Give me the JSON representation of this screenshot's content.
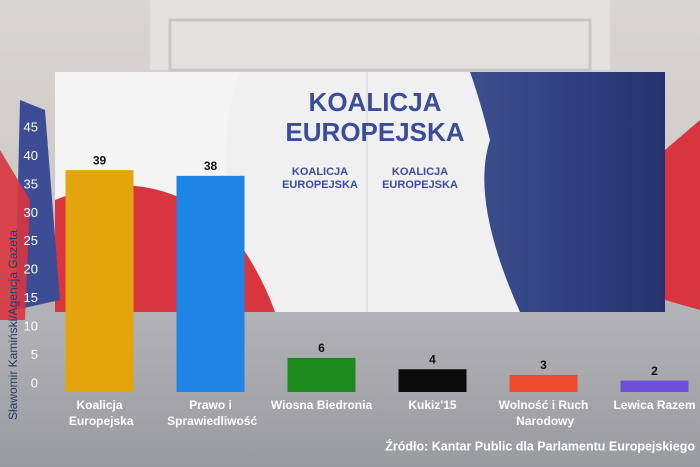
{
  "chart_data": {
    "type": "bar",
    "categories": [
      "Koalicja\nEuropejska",
      "Prawo i\nSprawiedliwość",
      "Wiosna Biedronia",
      "Kukiz'15",
      "Wolność i Ruch\nNarodowy",
      "Lewica Razem"
    ],
    "values": [
      39,
      38,
      6,
      4,
      3,
      2
    ],
    "colors": [
      "#e3a40c",
      "#1e85e6",
      "#1c8a1c",
      "#0b0b0b",
      "#ee4a2c",
      "#6b50d8"
    ],
    "ylim": [
      0,
      45
    ],
    "yticks": [
      0,
      5,
      10,
      15,
      20,
      25,
      30,
      35,
      40,
      45
    ],
    "grid": false,
    "source": "Źródło: Kantar Public dla Parlamentu Europejskiego",
    "credit": "Sławomir Kamiński/Agencja Gazeta"
  },
  "backdrop": {
    "lines": [
      "KOALICJA",
      "EUROPEJSKA"
    ]
  }
}
